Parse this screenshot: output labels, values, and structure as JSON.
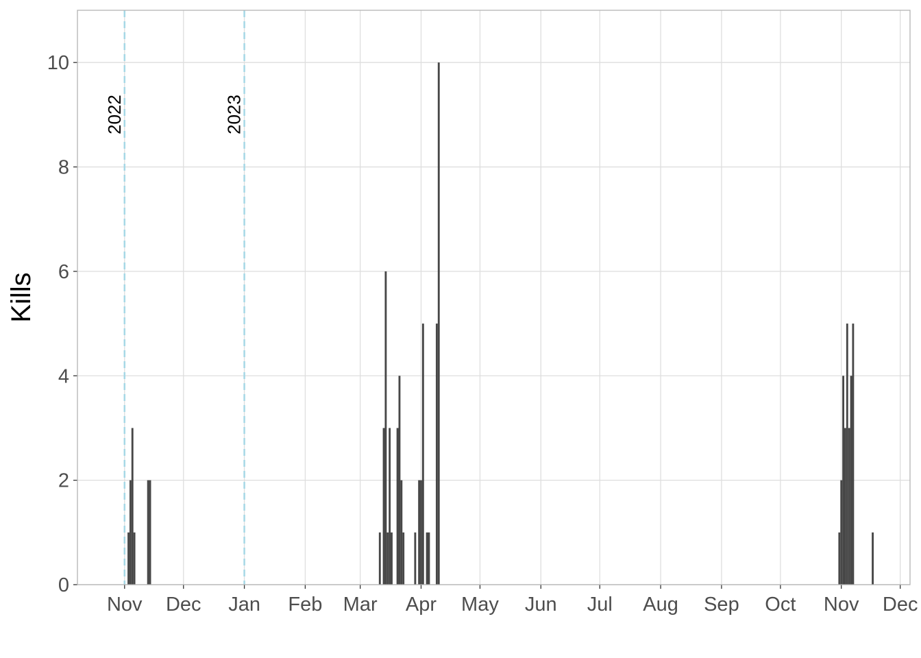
{
  "chart_data": {
    "type": "bar",
    "y_label": "Kills",
    "color": "#474747",
    "x": [
      2,
      3,
      4,
      5,
      12,
      13,
      130,
      132,
      133,
      134,
      135,
      136,
      139,
      140,
      141,
      142,
      148,
      150,
      151,
      152,
      154,
      155,
      159,
      160,
      364,
      365,
      366,
      367,
      368,
      369,
      370,
      371,
      381
    ],
    "values": [
      1,
      2,
      3,
      1,
      2,
      2,
      1,
      3,
      6,
      1,
      3,
      1,
      3,
      4,
      2,
      1,
      1,
      2,
      2,
      5,
      1,
      1,
      5,
      10,
      1,
      2,
      4,
      3,
      5,
      3,
      4,
      5,
      1
    ],
    "xlim": [
      -24,
      400
    ],
    "xticks": [
      {
        "value": 0,
        "label": "Nov"
      },
      {
        "value": 30,
        "label": "Dec"
      },
      {
        "value": 61,
        "label": "Jan"
      },
      {
        "value": 92,
        "label": "Feb"
      },
      {
        "value": 120,
        "label": "Mar"
      },
      {
        "value": 151,
        "label": "Apr"
      },
      {
        "value": 181,
        "label": "May"
      },
      {
        "value": 212,
        "label": "Jun"
      },
      {
        "value": 242,
        "label": "Jul"
      },
      {
        "value": 273,
        "label": "Aug"
      },
      {
        "value": 304,
        "label": "Sep"
      },
      {
        "value": 334,
        "label": "Oct"
      },
      {
        "value": 365,
        "label": "Nov"
      },
      {
        "value": 395,
        "label": "Dec"
      }
    ],
    "ylim": [
      0,
      11
    ],
    "yticks": [
      0,
      2,
      4,
      6,
      8,
      10
    ],
    "grid": true,
    "annotations": [
      {
        "x": 0,
        "label": "2022",
        "color": "#a6d8e6"
      },
      {
        "x": 61,
        "label": "2023",
        "color": "#a6d8e6"
      }
    ]
  }
}
